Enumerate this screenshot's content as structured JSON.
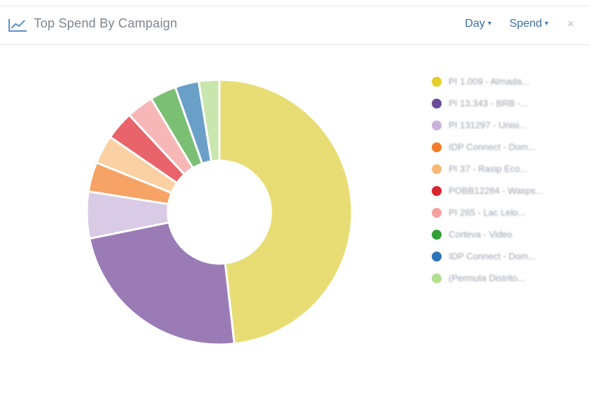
{
  "header": {
    "title": "Top Spend By Campaign",
    "icon": "line-chart-icon",
    "period_dropdown": {
      "label": "Day",
      "caret": "▾"
    },
    "metric_dropdown": {
      "label": "Spend",
      "caret": "▾"
    },
    "close_label": "×"
  },
  "chart_data": {
    "type": "pie",
    "subtype": "donut",
    "title": "Top Spend By Campaign",
    "legend_position": "right",
    "slices": [
      {
        "label": "PI 1.009 - Almada...",
        "value": 48.2,
        "color": "#e8dd75"
      },
      {
        "label": "PI 13.343 - BRB -...",
        "value": 23.6,
        "color": "#9b7bb6"
      },
      {
        "label": "PI 131297 - Unisi...",
        "value": 5.7,
        "color": "#d9cbe5"
      },
      {
        "label": "IDP Connect - Dom...",
        "value": 3.6,
        "color": "#f6a365"
      },
      {
        "label": "PI 37 - Rasip Eco...",
        "value": 3.5,
        "color": "#fbd0a2"
      },
      {
        "label": "POBB12284 - Wasps...",
        "value": 3.5,
        "color": "#e8636a"
      },
      {
        "label": "PI 265 - Lac Lelo...",
        "value": 3.3,
        "color": "#f8b7b7"
      },
      {
        "label": "Corteva - Video",
        "value": 3.2,
        "color": "#7bbf74"
      },
      {
        "label": "IDP Connect - Dom...",
        "value": 2.9,
        "color": "#6a9fc8"
      },
      {
        "label": "(Permuta Distrito...",
        "value": 2.5,
        "color": "#c9e6ae"
      }
    ]
  },
  "legend_colors": {
    "items": [
      "#e4cf2a",
      "#6b4c9a",
      "#c9b3db",
      "#f47c2a",
      "#f7b977",
      "#d9242c",
      "#f6a1a1",
      "#35a039",
      "#2c75b6",
      "#b3df91"
    ]
  }
}
